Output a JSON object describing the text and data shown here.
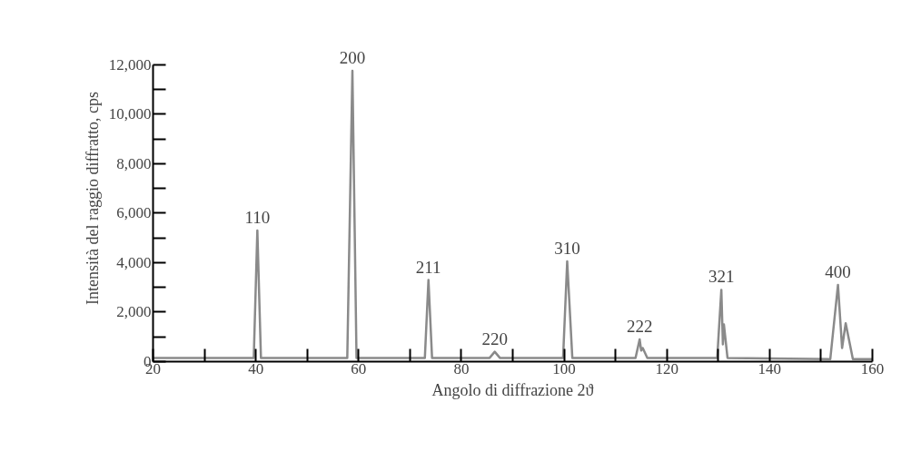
{
  "chart_data": {
    "type": "line",
    "xlabel": "Angolo di diffrazione 2ϑ",
    "ylabel": "Intensità del raggio diffratto, cps",
    "series": [
      {
        "color": "#8a8a8a",
        "x": [
          20,
          39.6,
          40.3,
          41.0,
          57.8,
          58.8,
          59.6,
          72.9,
          73.6,
          74.3,
          85.5,
          86.5,
          87.5,
          99.8,
          100.6,
          101.6,
          113.9,
          114.7,
          115.0,
          115.3,
          116.2,
          129.8,
          130.6,
          130.9,
          131.1,
          131.8,
          151.8,
          153.3,
          154.1,
          154.8,
          156.2,
          160
        ],
        "values": [
          150,
          150,
          5300,
          150,
          150,
          11750,
          150,
          150,
          3300,
          150,
          150,
          400,
          150,
          150,
          4050,
          150,
          150,
          900,
          450,
          550,
          150,
          150,
          2900,
          700,
          1500,
          150,
          100,
          3100,
          550,
          1550,
          100,
          100
        ]
      }
    ],
    "xlim": [
      20,
      160
    ],
    "ylim": [
      0,
      12000
    ],
    "xticks": [
      20,
      40,
      60,
      80,
      100,
      120,
      140,
      160,
      {
        "value": 30,
        "label": null
      },
      {
        "value": 50,
        "label": null
      },
      {
        "value": 70,
        "label": null
      },
      {
        "value": 90,
        "label": null
      },
      {
        "value": 110,
        "label": null
      },
      {
        "value": 130,
        "label": null
      },
      {
        "value": 150,
        "label": null
      }
    ],
    "yticks": [
      {
        "value": 0,
        "label": "0"
      },
      {
        "value": 2000,
        "label": "2,000"
      },
      {
        "value": 4000,
        "label": "4,000"
      },
      {
        "value": 6000,
        "label": "6,000"
      },
      {
        "value": 8000,
        "label": "8,000"
      },
      {
        "value": 10000,
        "label": "10,000"
      },
      {
        "value": 12000,
        "label": "12,000"
      },
      {
        "value": 1000,
        "label": null
      },
      {
        "value": 3000,
        "label": null
      },
      {
        "value": 5000,
        "label": null
      },
      {
        "value": 7000,
        "label": null
      },
      {
        "value": 9000,
        "label": null
      },
      {
        "value": 11000,
        "label": null
      }
    ],
    "annotations": [
      {
        "text": "110",
        "x": 40.3,
        "y": 5300
      },
      {
        "text": "200",
        "x": 58.8,
        "y": 11750
      },
      {
        "text": "211",
        "x": 73.6,
        "y": 3300
      },
      {
        "text": "220",
        "x": 86.5,
        "y": 400
      },
      {
        "text": "310",
        "x": 100.6,
        "y": 4050
      },
      {
        "text": "222",
        "x": 114.7,
        "y": 900
      },
      {
        "text": "321",
        "x": 130.6,
        "y": 2900
      },
      {
        "text": "400",
        "x": 153.3,
        "y": 3100
      }
    ],
    "grid": false,
    "marker": "none",
    "line_style": "solid"
  }
}
